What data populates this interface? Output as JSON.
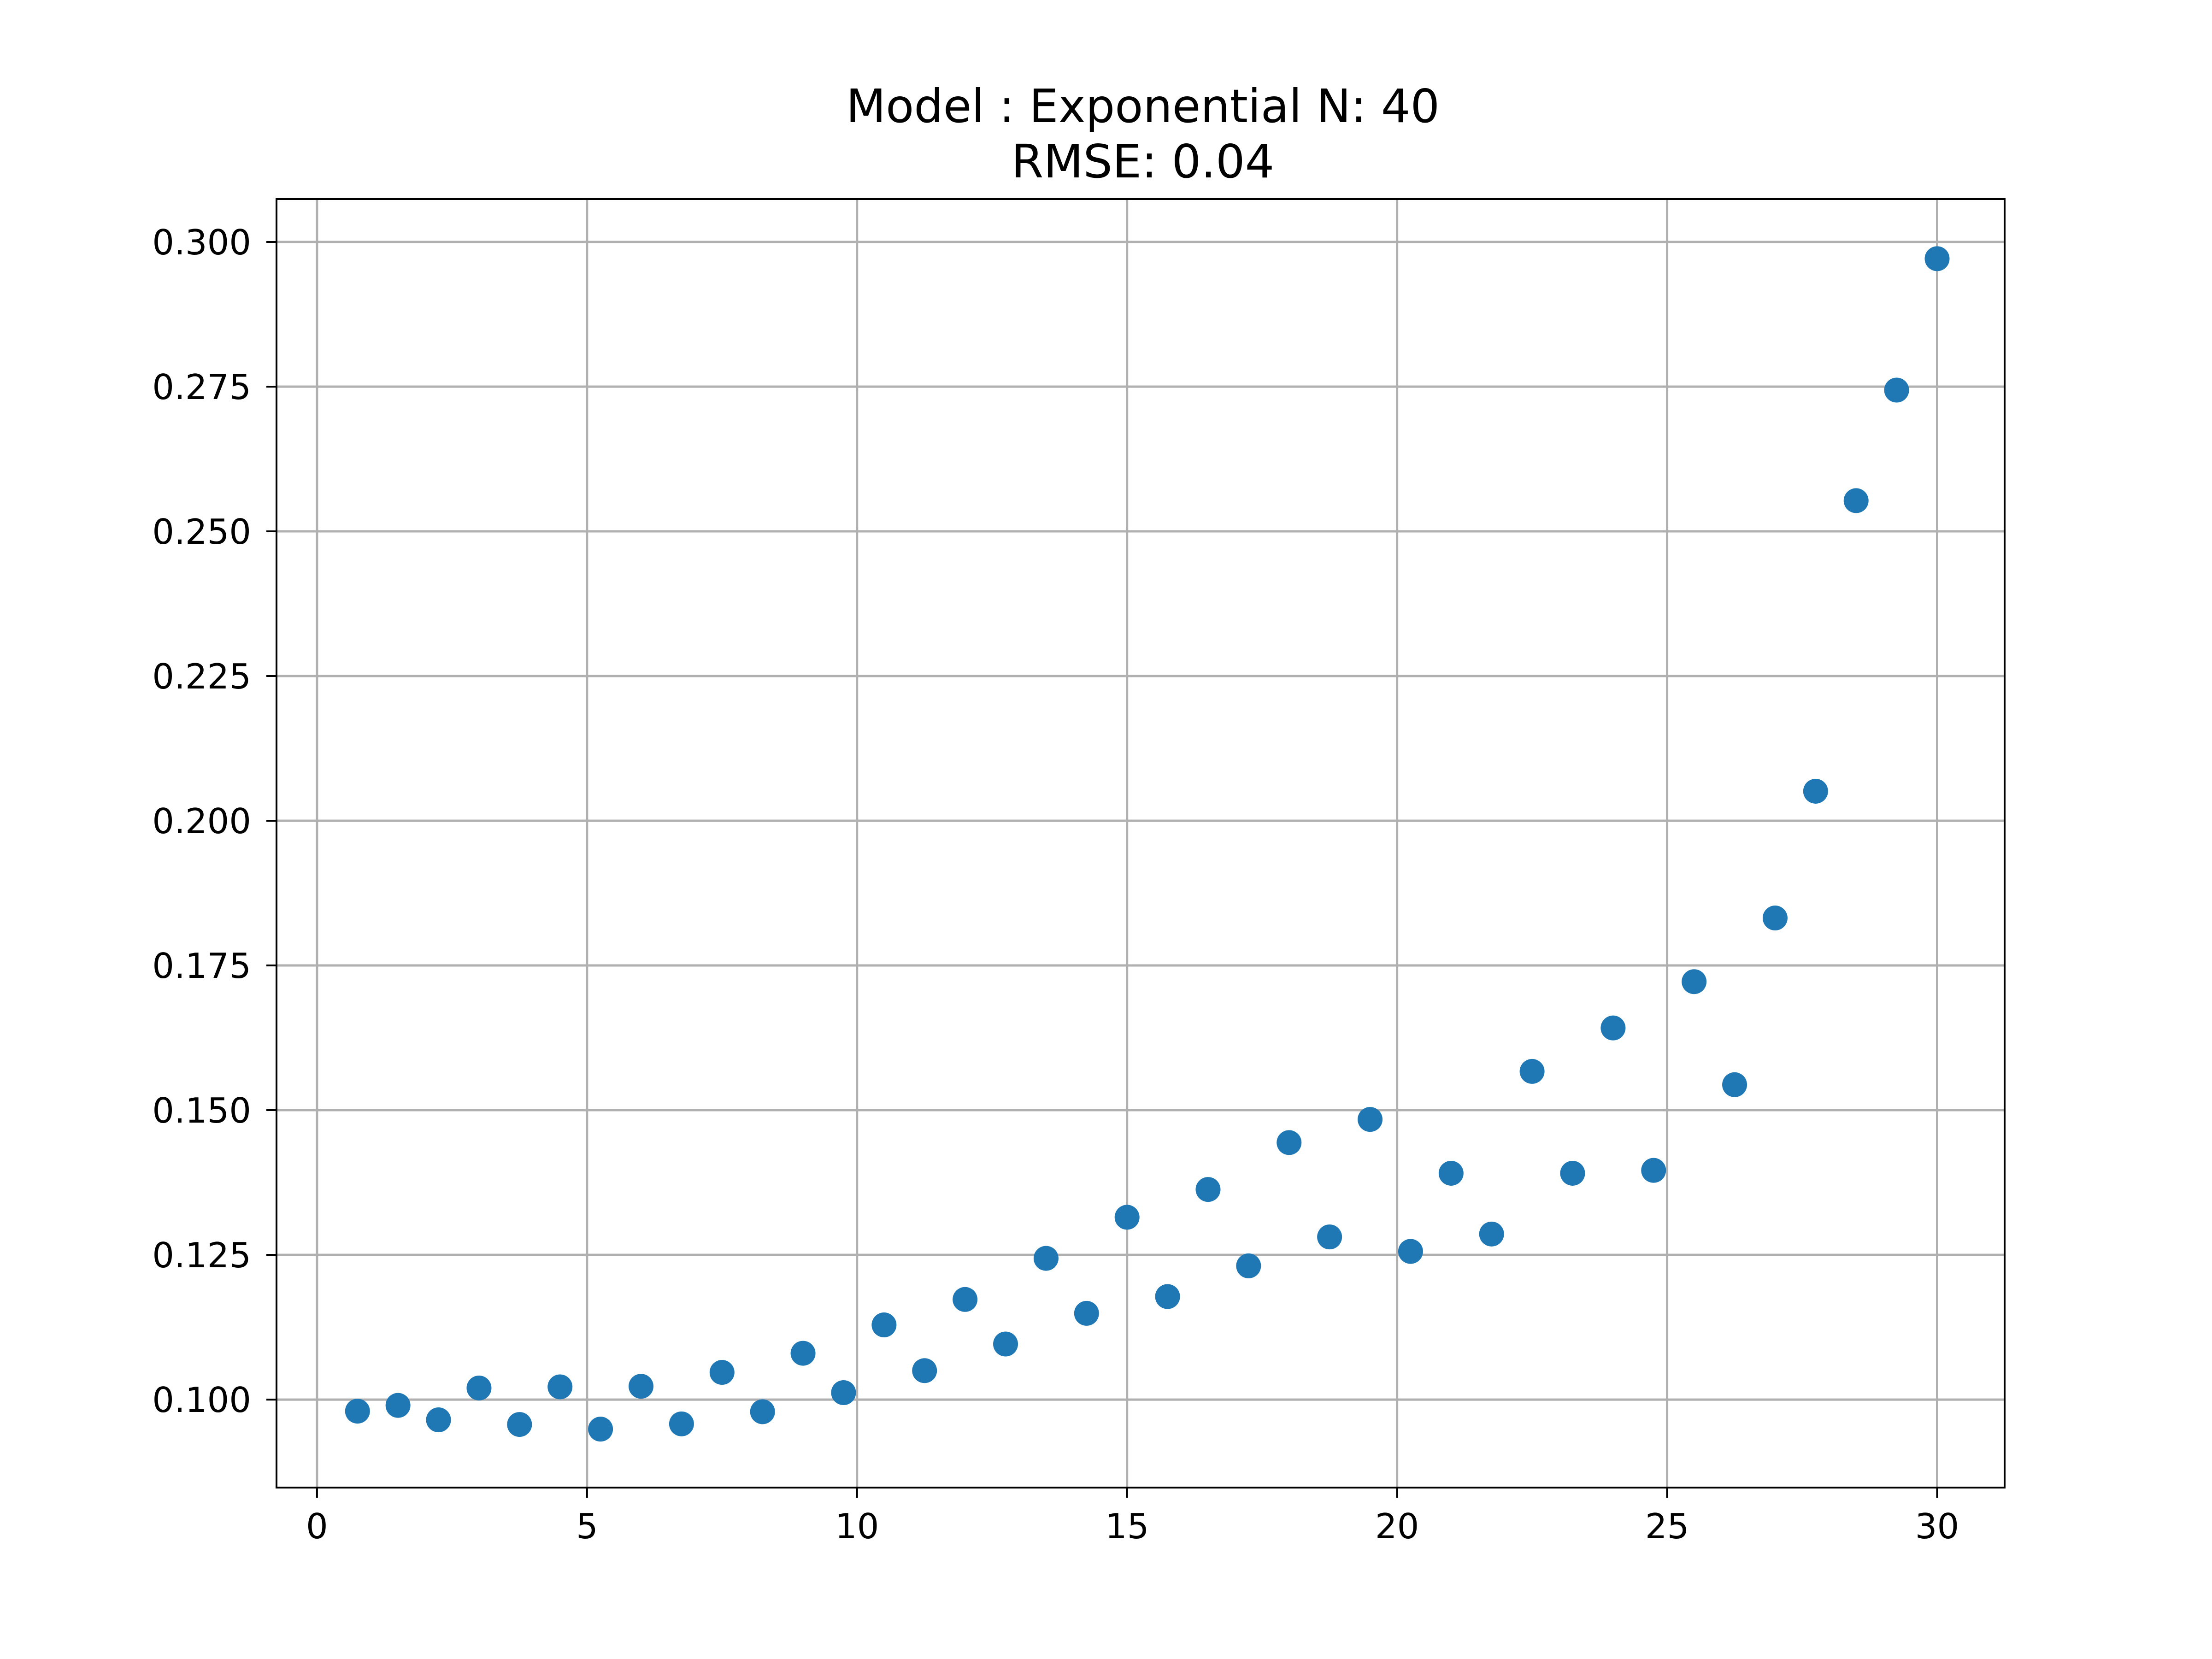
{
  "chart_data": {
    "type": "scatter",
    "title": "Model : Exponential N: 40",
    "subtitle": "RMSE: 0.04",
    "xlabel": "",
    "ylabel": "",
    "xlim": [
      -0.75,
      31.25
    ],
    "ylim": [
      0.0848,
      0.3074
    ],
    "x_ticks": [
      0,
      5,
      10,
      15,
      20,
      25,
      30
    ],
    "x_tick_labels": [
      "0",
      "5",
      "10",
      "15",
      "20",
      "25",
      "30"
    ],
    "y_ticks": [
      0.1,
      0.125,
      0.15,
      0.175,
      0.2,
      0.225,
      0.25,
      0.275,
      0.3
    ],
    "y_tick_labels": [
      "0.100",
      "0.125",
      "0.150",
      "0.175",
      "0.200",
      "0.225",
      "0.250",
      "0.275",
      "0.300"
    ],
    "grid": true,
    "legend": "none",
    "marker_color": "#1f77b4",
    "series": [
      {
        "x": [
          0.75,
          1.5,
          2.25,
          3.0,
          3.75,
          4.5,
          5.25,
          6.0,
          6.75,
          7.5,
          8.25,
          9.0,
          9.75,
          10.5,
          11.25,
          12.0,
          12.75,
          13.5,
          14.25,
          15.0,
          15.75,
          16.5,
          17.25,
          18.0,
          18.75,
          19.5,
          20.25,
          21.0,
          21.75,
          22.5,
          23.25,
          24.0,
          24.75,
          25.5,
          26.25,
          27.0,
          27.75,
          28.5,
          29.25,
          30.0
        ],
        "y": [
          0.098,
          0.099,
          0.0965,
          0.102,
          0.0957,
          0.1022,
          0.0949,
          0.1023,
          0.0958,
          0.1047,
          0.0979,
          0.108,
          0.1012,
          0.1129,
          0.105,
          0.1173,
          0.1096,
          0.1244,
          0.1149,
          0.1315,
          0.1178,
          0.1363,
          0.1231,
          0.1444,
          0.1281,
          0.1484,
          0.1256,
          0.1391,
          0.1286,
          0.1567,
          0.1391,
          0.1642,
          0.1396,
          0.1722,
          0.1544,
          0.1832,
          0.2051,
          0.2553,
          0.2744,
          0.2971
        ]
      }
    ]
  }
}
